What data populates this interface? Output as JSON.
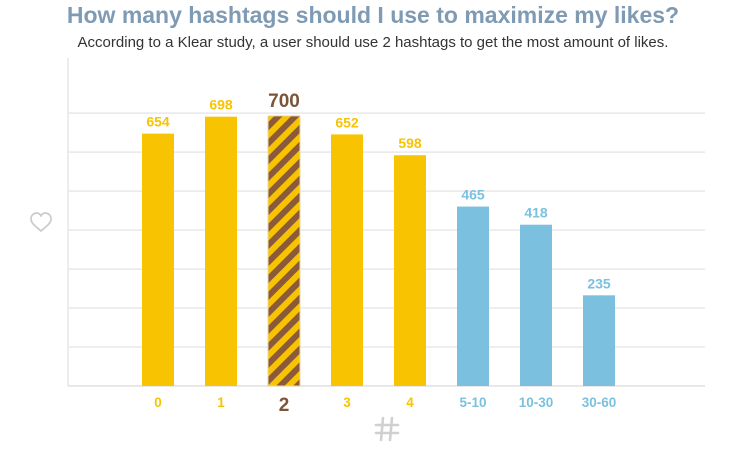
{
  "title": "How many hashtags should I use to maximize my likes?",
  "subtitle": "According to a Klear study, a user should use 2 hashtags to get the most amount of likes.",
  "icons": {
    "y_axis": "heart-icon",
    "x_axis": "hash-icon"
  },
  "colors": {
    "yellow": "#f8c300",
    "blue": "#7bc1df",
    "highlight_stripe_a": "#8a5a3a",
    "highlight_stripe_b": "#f8c300",
    "highlight_text": "#7b5538",
    "title": "#7f9bb4",
    "grid": "#e8e8e8",
    "icon": "#d0d0d0"
  },
  "chart_data": {
    "type": "bar",
    "title": "How many hashtags should I use to maximize my likes?",
    "subtitle": "According to a Klear study, a user should use 2 hashtags to get the most amount of likes.",
    "categories": [
      "0",
      "1",
      "2",
      "3",
      "4",
      "5-10",
      "10-30",
      "30-60"
    ],
    "values": [
      654,
      698,
      700,
      652,
      598,
      465,
      418,
      235
    ],
    "bar_colors": [
      "yellow",
      "yellow",
      "highlight",
      "yellow",
      "yellow",
      "blue",
      "blue",
      "blue"
    ],
    "highlight_index": 2,
    "ylim": [
      0,
      850
    ],
    "grid": true,
    "xlabel": "",
    "ylabel": ""
  }
}
